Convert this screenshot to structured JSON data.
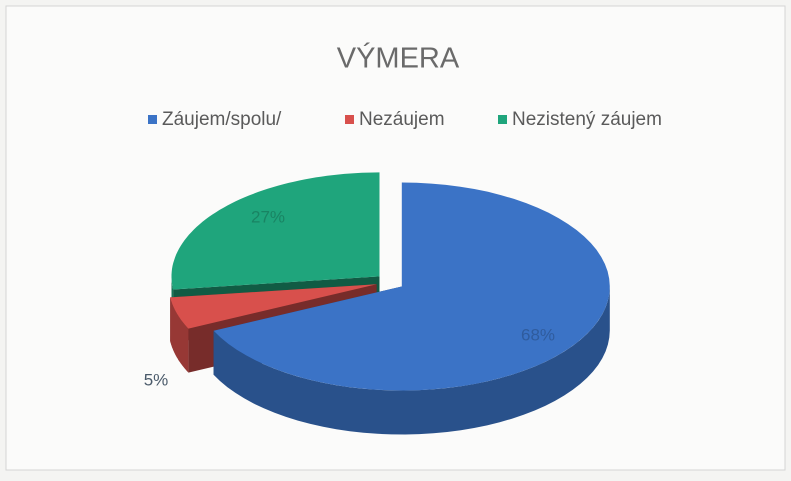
{
  "chart_data": {
    "type": "pie",
    "title": "VÝMERA",
    "categories": [
      "Záujem/spolu/",
      "Nezáujem",
      "Nezistený záujem"
    ],
    "values": [
      68,
      5,
      27
    ],
    "value_labels": [
      "68%",
      "5%",
      "27%"
    ],
    "colors": [
      "#3b73c6",
      "#d8504c",
      "#1fa57c"
    ],
    "legend": "top"
  }
}
